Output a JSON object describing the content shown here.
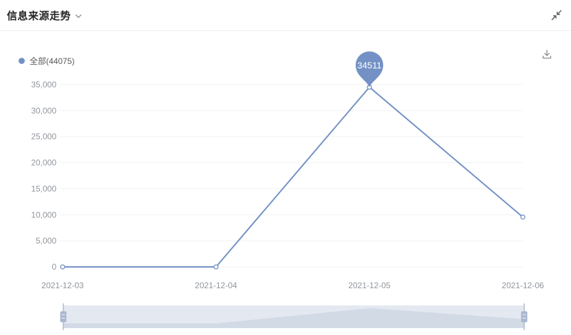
{
  "header": {
    "title": "信息来源走势"
  },
  "icons": {
    "title_chevron": "chevron-down",
    "header_collapse": "collapse-inward-arrows",
    "toolbar_download": "download-tray"
  },
  "legend": {
    "label": "全部(44075)",
    "series_name": "全部",
    "total": 44075
  },
  "chart_data": {
    "type": "line",
    "title": "信息来源走势",
    "categories": [
      "2021-12-03",
      "2021-12-04",
      "2021-12-05",
      "2021-12-06"
    ],
    "series": [
      {
        "name": "全部",
        "values": [
          0,
          0,
          34511,
          9564
        ]
      }
    ],
    "peak_label": {
      "index": 2,
      "text": "34511"
    },
    "y_ticks": [
      {
        "value": 0,
        "label": "0"
      },
      {
        "value": 5000,
        "label": "5,000"
      },
      {
        "value": 10000,
        "label": "10,000"
      },
      {
        "value": 15000,
        "label": "15,000"
      },
      {
        "value": 20000,
        "label": "20,000"
      },
      {
        "value": 25000,
        "label": "25,000"
      },
      {
        "value": 30000,
        "label": "30,000"
      },
      {
        "value": 35000,
        "label": "35,000"
      }
    ],
    "ylim": [
      0,
      35000
    ],
    "xlabel": "",
    "ylabel": "",
    "grid": true,
    "legend_position": "top-left",
    "datazoom": {
      "enabled": true,
      "start_category": "2021-12-03",
      "end_category": "2021-12-06"
    },
    "colors": {
      "line": "#7391c5",
      "marker_fill": "#ffffff",
      "grid": "#f0f2f5",
      "axis_text": "#90959c",
      "pin_fill": "#7391c5",
      "pin_text": "#ffffff",
      "zoom_bg": "#e4e9f1",
      "zoom_shadow": "#d2dae6",
      "zoom_handle": "#a9b8ce",
      "zoom_handle_grip": "#e8edf4"
    }
  }
}
